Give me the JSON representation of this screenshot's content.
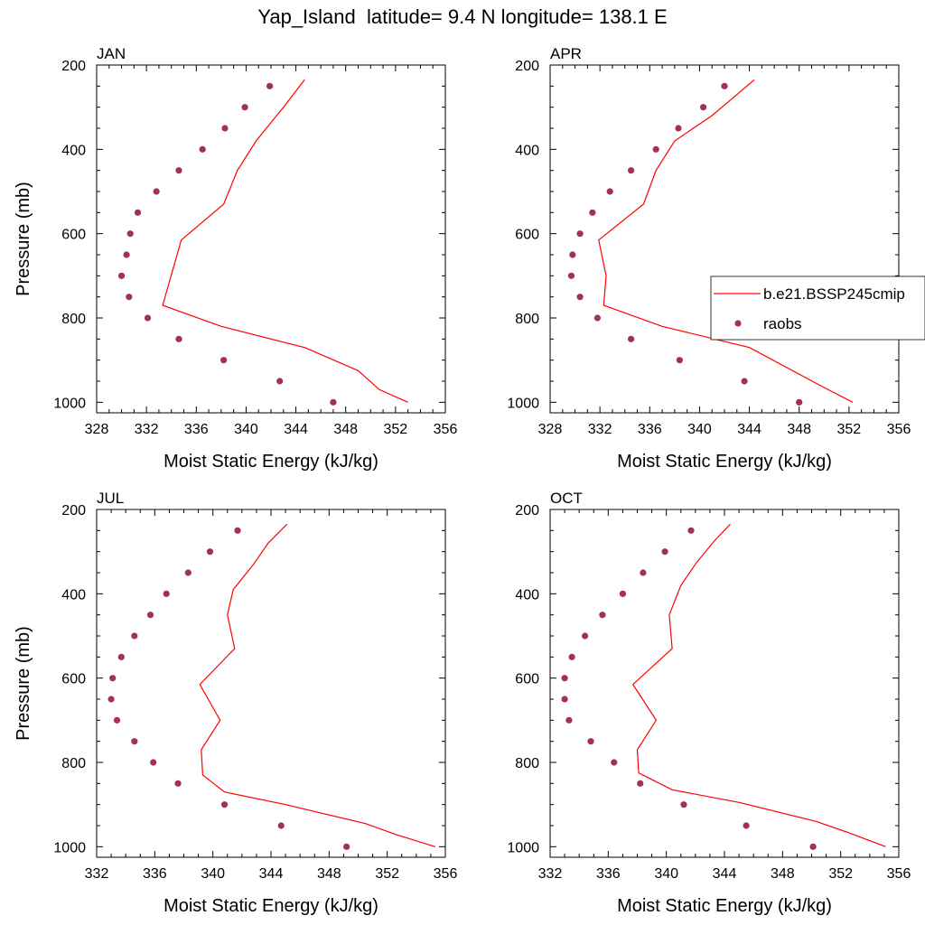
{
  "title": "Yap_Island  latitude= 9.4 N longitude= 138.1 E",
  "legend": {
    "entries": [
      {
        "label": "b.e21.BSSP245cmip",
        "kind": "line",
        "color": "#ff0000"
      },
      {
        "label": "raobs",
        "kind": "marker",
        "color": "#a4305a"
      }
    ]
  },
  "chart_data": [
    {
      "type": "line",
      "title": "JAN",
      "xlabel": "Moist Static Energy (kJ/kg)",
      "ylabel": "Pressure (mb)",
      "xlim": [
        328,
        356
      ],
      "ylim": [
        1025,
        200
      ],
      "xticks": [
        328,
        332,
        336,
        340,
        344,
        348,
        352,
        356
      ],
      "yticks": [
        200,
        400,
        600,
        800,
        1000
      ],
      "grid": false,
      "series": [
        {
          "name": "b.e21.BSSP245cmip",
          "style": "line",
          "color": "#ff0000",
          "x": [
            344.7,
            343.0,
            340.8,
            339.3,
            338.2,
            334.8,
            333.3,
            338.0,
            344.7,
            349.0,
            350.7,
            353.0
          ],
          "y": [
            235,
            300,
            380,
            450,
            530,
            615,
            770,
            820,
            870,
            925,
            970,
            1000
          ]
        },
        {
          "name": "raobs",
          "style": "marker",
          "color": "#a4305a",
          "x": [
            341.9,
            339.9,
            338.3,
            336.5,
            334.6,
            332.8,
            331.3,
            330.7,
            330.4,
            330.0,
            330.6,
            332.1,
            334.6,
            338.2,
            342.7,
            347.0
          ],
          "y": [
            250,
            300,
            350,
            400,
            450,
            500,
            550,
            600,
            650,
            700,
            750,
            800,
            850,
            900,
            950,
            1000
          ]
        }
      ]
    },
    {
      "type": "line",
      "title": "APR",
      "xlabel": "Moist Static Energy (kJ/kg)",
      "ylabel": "",
      "xlim": [
        328,
        356
      ],
      "ylim": [
        1025,
        200
      ],
      "xticks": [
        328,
        332,
        336,
        340,
        344,
        348,
        352,
        356
      ],
      "yticks": [
        200,
        400,
        600,
        800,
        1000
      ],
      "grid": false,
      "series": [
        {
          "name": "b.e21.BSSP245cmip",
          "style": "line",
          "color": "#ff0000",
          "x": [
            344.4,
            341.0,
            338.0,
            336.5,
            335.5,
            331.9,
            332.5,
            332.3,
            337.0,
            344.0,
            350.0,
            352.3
          ],
          "y": [
            235,
            320,
            380,
            450,
            530,
            615,
            700,
            770,
            820,
            870,
            965,
            1000
          ]
        },
        {
          "name": "raobs",
          "style": "marker",
          "color": "#a4305a",
          "x": [
            342.0,
            340.3,
            338.3,
            336.5,
            334.5,
            332.8,
            331.4,
            330.4,
            329.8,
            329.7,
            330.4,
            331.8,
            334.5,
            338.4,
            343.6,
            348.0
          ],
          "y": [
            250,
            300,
            350,
            400,
            450,
            500,
            550,
            600,
            650,
            700,
            750,
            800,
            850,
            900,
            950,
            1000
          ]
        }
      ]
    },
    {
      "type": "line",
      "title": "JUL",
      "xlabel": "Moist Static Energy (kJ/kg)",
      "ylabel": "Pressure (mb)",
      "xlim": [
        332,
        356
      ],
      "ylim": [
        1025,
        200
      ],
      "xticks": [
        332,
        336,
        340,
        344,
        348,
        352,
        356
      ],
      "yticks": [
        200,
        400,
        600,
        800,
        1000
      ],
      "grid": false,
      "series": [
        {
          "name": "b.e21.BSSP245cmip",
          "style": "line",
          "color": "#ff0000",
          "x": [
            345.1,
            343.8,
            342.8,
            341.4,
            341.0,
            341.5,
            339.1,
            340.5,
            339.2,
            339.3,
            340.8,
            345.0,
            350.5,
            352.5,
            355.3
          ],
          "y": [
            235,
            280,
            330,
            390,
            450,
            530,
            615,
            700,
            770,
            830,
            870,
            900,
            945,
            970,
            1000
          ]
        },
        {
          "name": "raobs",
          "style": "marker",
          "color": "#a4305a",
          "x": [
            341.7,
            339.8,
            338.3,
            336.8,
            335.7,
            334.6,
            333.7,
            333.1,
            333.0,
            333.4,
            334.6,
            335.9,
            337.6,
            340.8,
            344.7,
            349.2
          ],
          "y": [
            250,
            300,
            350,
            400,
            450,
            500,
            550,
            600,
            650,
            700,
            750,
            800,
            850,
            900,
            950,
            1000
          ]
        }
      ]
    },
    {
      "type": "line",
      "title": "OCT",
      "xlabel": "Moist Static Energy (kJ/kg)",
      "ylabel": "",
      "xlim": [
        332,
        356
      ],
      "ylim": [
        1025,
        200
      ],
      "xticks": [
        332,
        336,
        340,
        344,
        348,
        352,
        356
      ],
      "yticks": [
        200,
        400,
        600,
        800,
        1000
      ],
      "grid": false,
      "series": [
        {
          "name": "b.e21.BSSP245cmip",
          "style": "line",
          "color": "#ff0000",
          "x": [
            344.4,
            343.3,
            342.1,
            341.0,
            340.2,
            340.4,
            337.7,
            339.3,
            338.0,
            338.1,
            340.4,
            345.0,
            350.3,
            352.4,
            355.1
          ],
          "y": [
            235,
            275,
            325,
            380,
            450,
            530,
            615,
            700,
            770,
            825,
            865,
            895,
            940,
            965,
            1000
          ]
        },
        {
          "name": "raobs",
          "style": "marker",
          "color": "#a4305a",
          "x": [
            341.7,
            339.9,
            338.4,
            337.0,
            335.6,
            334.4,
            333.5,
            333.0,
            333.0,
            333.3,
            334.8,
            336.4,
            338.2,
            341.2,
            345.5,
            350.1
          ],
          "y": [
            250,
            300,
            350,
            400,
            450,
            500,
            550,
            600,
            650,
            700,
            750,
            800,
            850,
            900,
            950,
            1000
          ]
        }
      ]
    }
  ]
}
